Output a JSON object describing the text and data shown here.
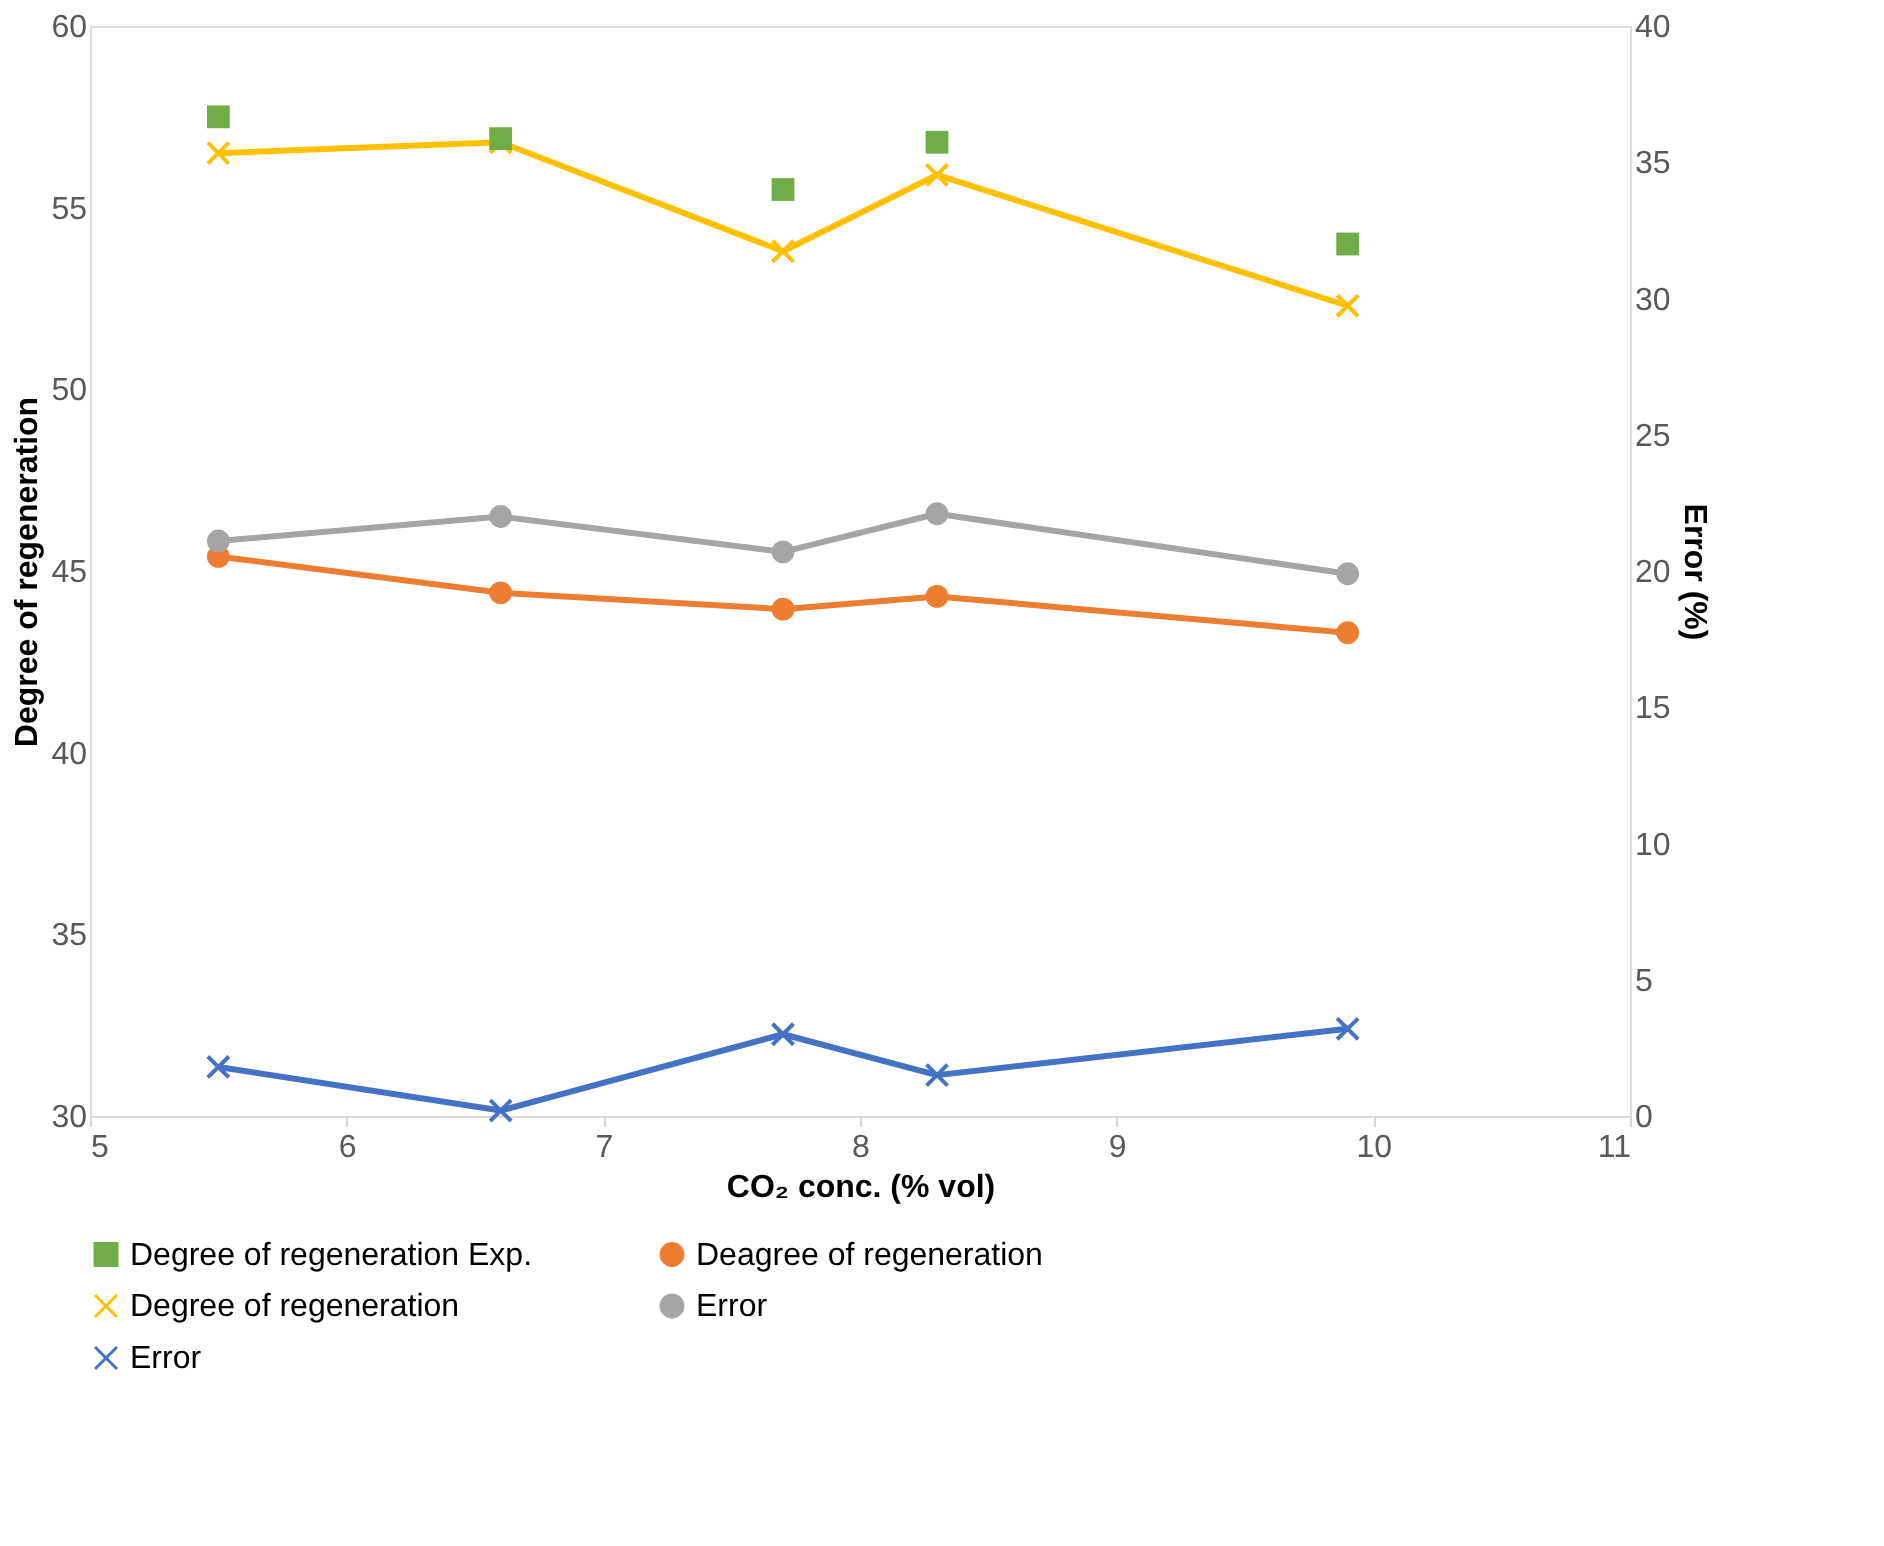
{
  "chart_data": {
    "type": "line",
    "xlabel": "CO₂ conc. (% vol)",
    "ylabel": "Degree of regeneration",
    "y2label": "Error (%)",
    "x": [
      5.5,
      6.6,
      7.7,
      8.3,
      9.9
    ],
    "xlim": [
      5,
      11
    ],
    "xticks": [
      5,
      6,
      7,
      8,
      9,
      10,
      11
    ],
    "marker": "circle",
    "ylim": [
      30,
      60
    ],
    "yticks": [
      30,
      35,
      40,
      45,
      50,
      55,
      60
    ],
    "y2lim": [
      0,
      40
    ],
    "y2ticks": [
      0,
      5,
      10,
      15,
      20,
      25,
      30,
      35,
      40
    ],
    "grid": false,
    "legend": "bottom",
    "series": [
      {
        "name": "Degree of regeneration Exp.",
        "type": "scatter",
        "color": "#70ad47",
        "marker": "square",
        "values": [
          57.5,
          56.9,
          55.5,
          56.8,
          54.0
        ]
      },
      {
        "name": "Deagree of regeneration",
        "color": "#ed7d31",
        "marker": "circle",
        "values": [
          45.4,
          44.4,
          43.95,
          44.3,
          43.3
        ]
      },
      {
        "name": "Degree of regeneration",
        "color": "#ffc000",
        "marker": "cross",
        "values": [
          56.5,
          56.8,
          53.8,
          55.9,
          52.3
        ]
      },
      {
        "name": "Error",
        "color": "#a5a5a5",
        "axis": "y2",
        "values": [
          21.1,
          22.0,
          20.7,
          22.1,
          19.9
        ]
      },
      {
        "name": "Error",
        "color": "#4472c4",
        "marker": "cross",
        "axis": "y2",
        "values": [
          1.8,
          0.2,
          3.0,
          1.5,
          3.2
        ]
      }
    ]
  }
}
